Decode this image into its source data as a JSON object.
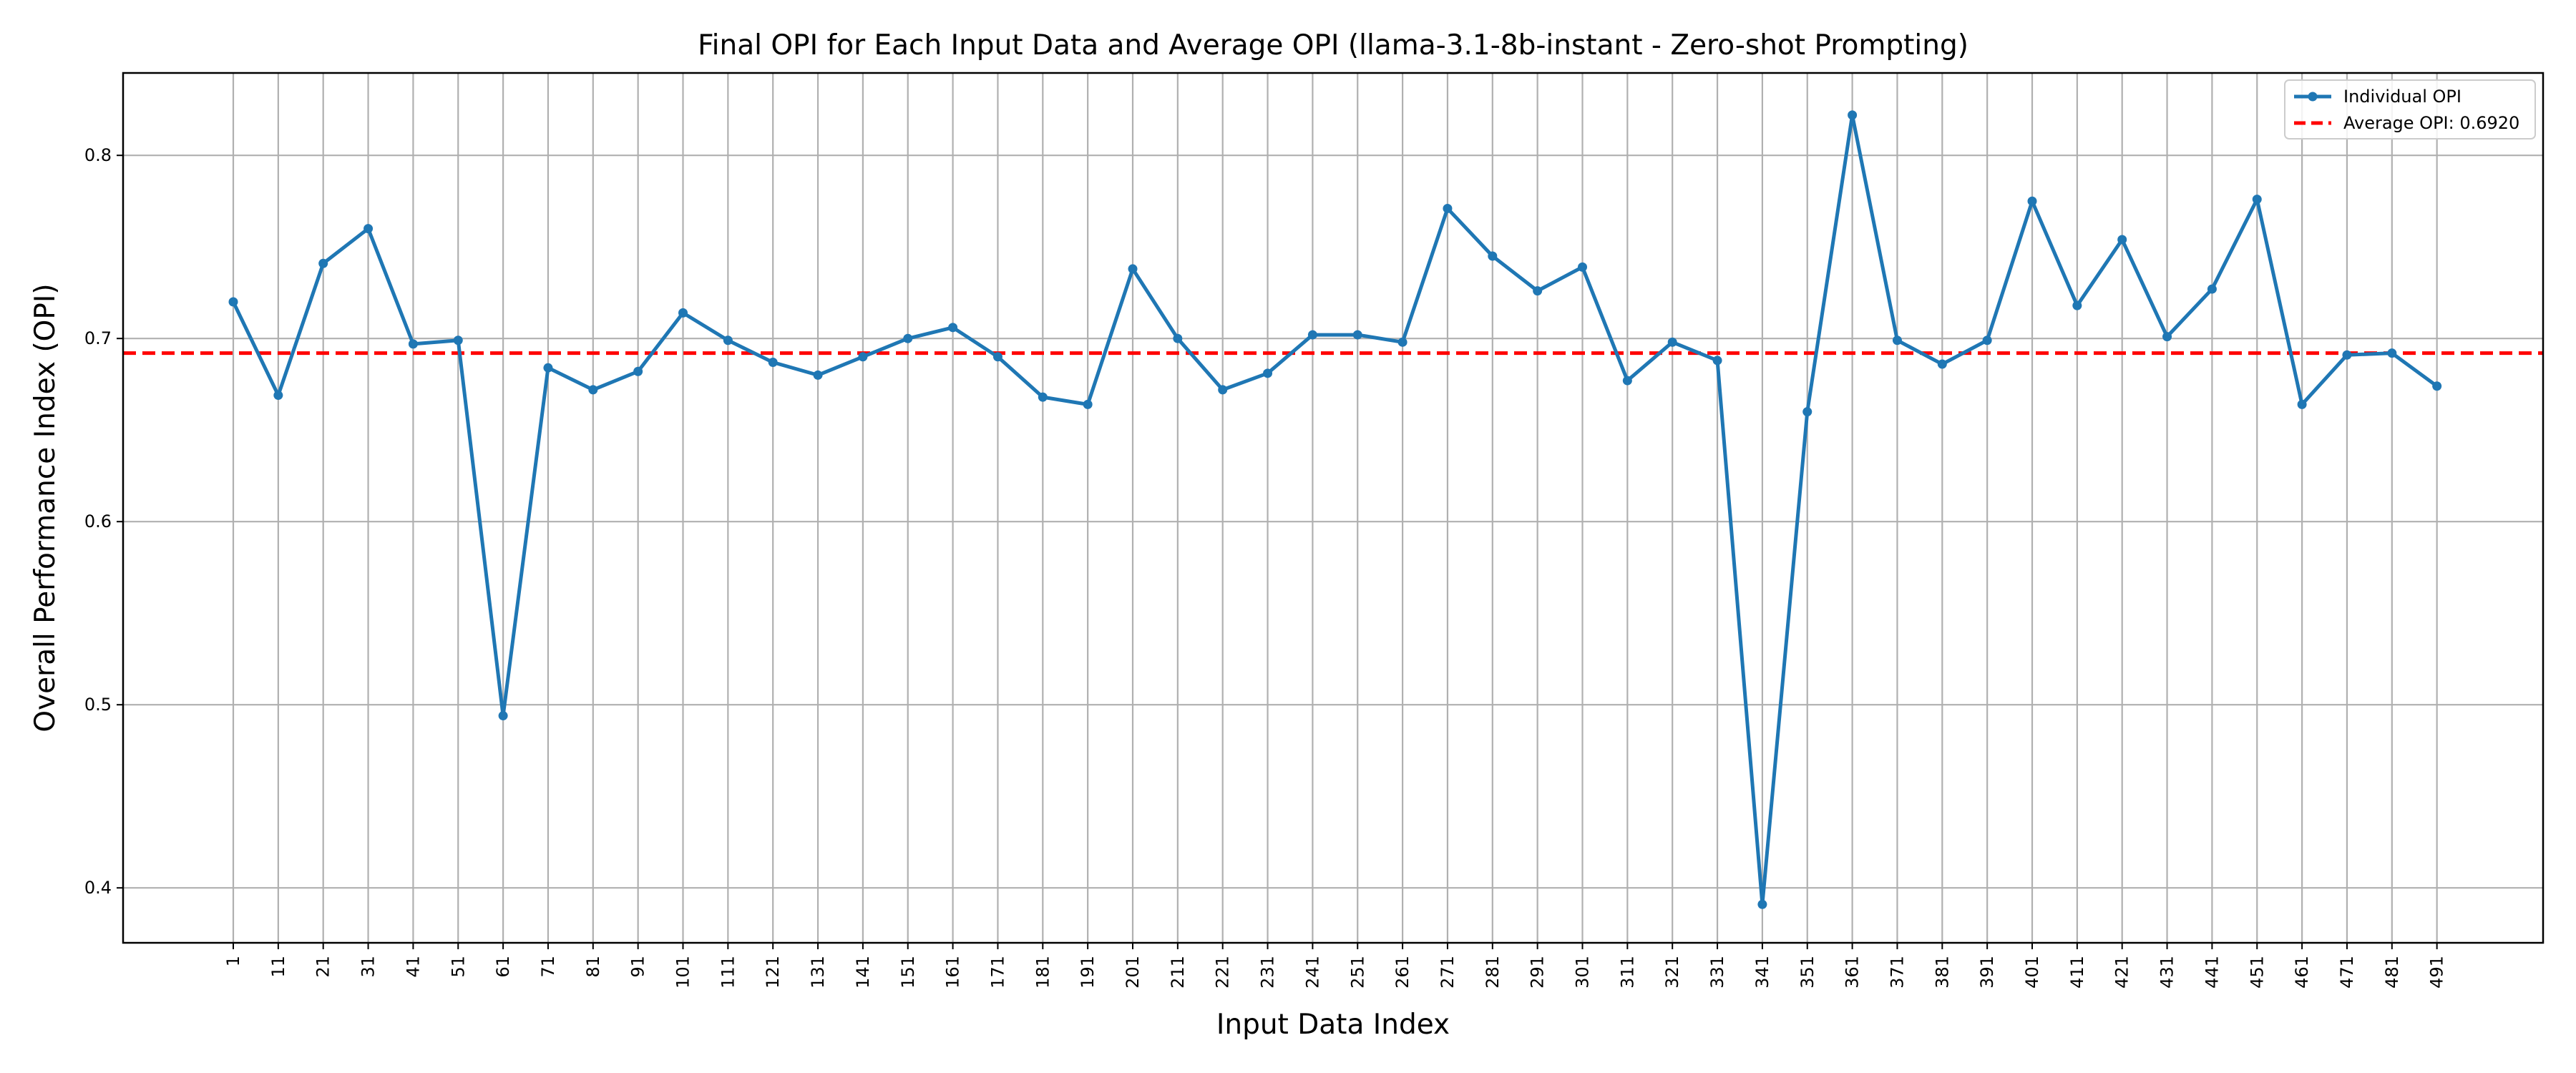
{
  "chart_data": {
    "type": "line",
    "title": "Final OPI for Each Input Data and Average OPI (llama-3.1-8b-instant - Zero-shot Prompting)",
    "xlabel": "Input Data Index",
    "ylabel": "Overall Performance Index (OPI)",
    "ylim": [
      0.37,
      0.845
    ],
    "yticks": [
      0.4,
      0.5,
      0.6,
      0.7,
      0.8
    ],
    "grid": true,
    "legend_placement": "top-right",
    "x": [
      1,
      11,
      21,
      31,
      41,
      51,
      61,
      71,
      81,
      91,
      101,
      111,
      121,
      131,
      141,
      151,
      161,
      171,
      181,
      191,
      201,
      211,
      221,
      231,
      241,
      251,
      261,
      271,
      281,
      291,
      301,
      311,
      321,
      331,
      341,
      351,
      361,
      371,
      381,
      391,
      401,
      411,
      421,
      431,
      441,
      451,
      461,
      471,
      481,
      491
    ],
    "series": [
      {
        "name": "Individual OPI",
        "color": "#1f77b4",
        "values": [
          0.72,
          0.669,
          0.741,
          0.76,
          0.697,
          0.699,
          0.494,
          0.684,
          0.672,
          0.682,
          0.714,
          0.699,
          0.687,
          0.68,
          0.69,
          0.7,
          0.706,
          0.69,
          0.668,
          0.664,
          0.738,
          0.7,
          0.672,
          0.681,
          0.702,
          0.702,
          0.698,
          0.771,
          0.745,
          0.726,
          0.739,
          0.677,
          0.698,
          0.688,
          0.391,
          0.66,
          0.822,
          0.699,
          0.686,
          0.699,
          0.775,
          0.718,
          0.754,
          0.701,
          0.727,
          0.776,
          0.664,
          0.691,
          0.692,
          0.674
        ]
      }
    ],
    "average": {
      "name": "Average OPI: 0.6920",
      "value": 0.692,
      "color": "#ff0000"
    }
  }
}
